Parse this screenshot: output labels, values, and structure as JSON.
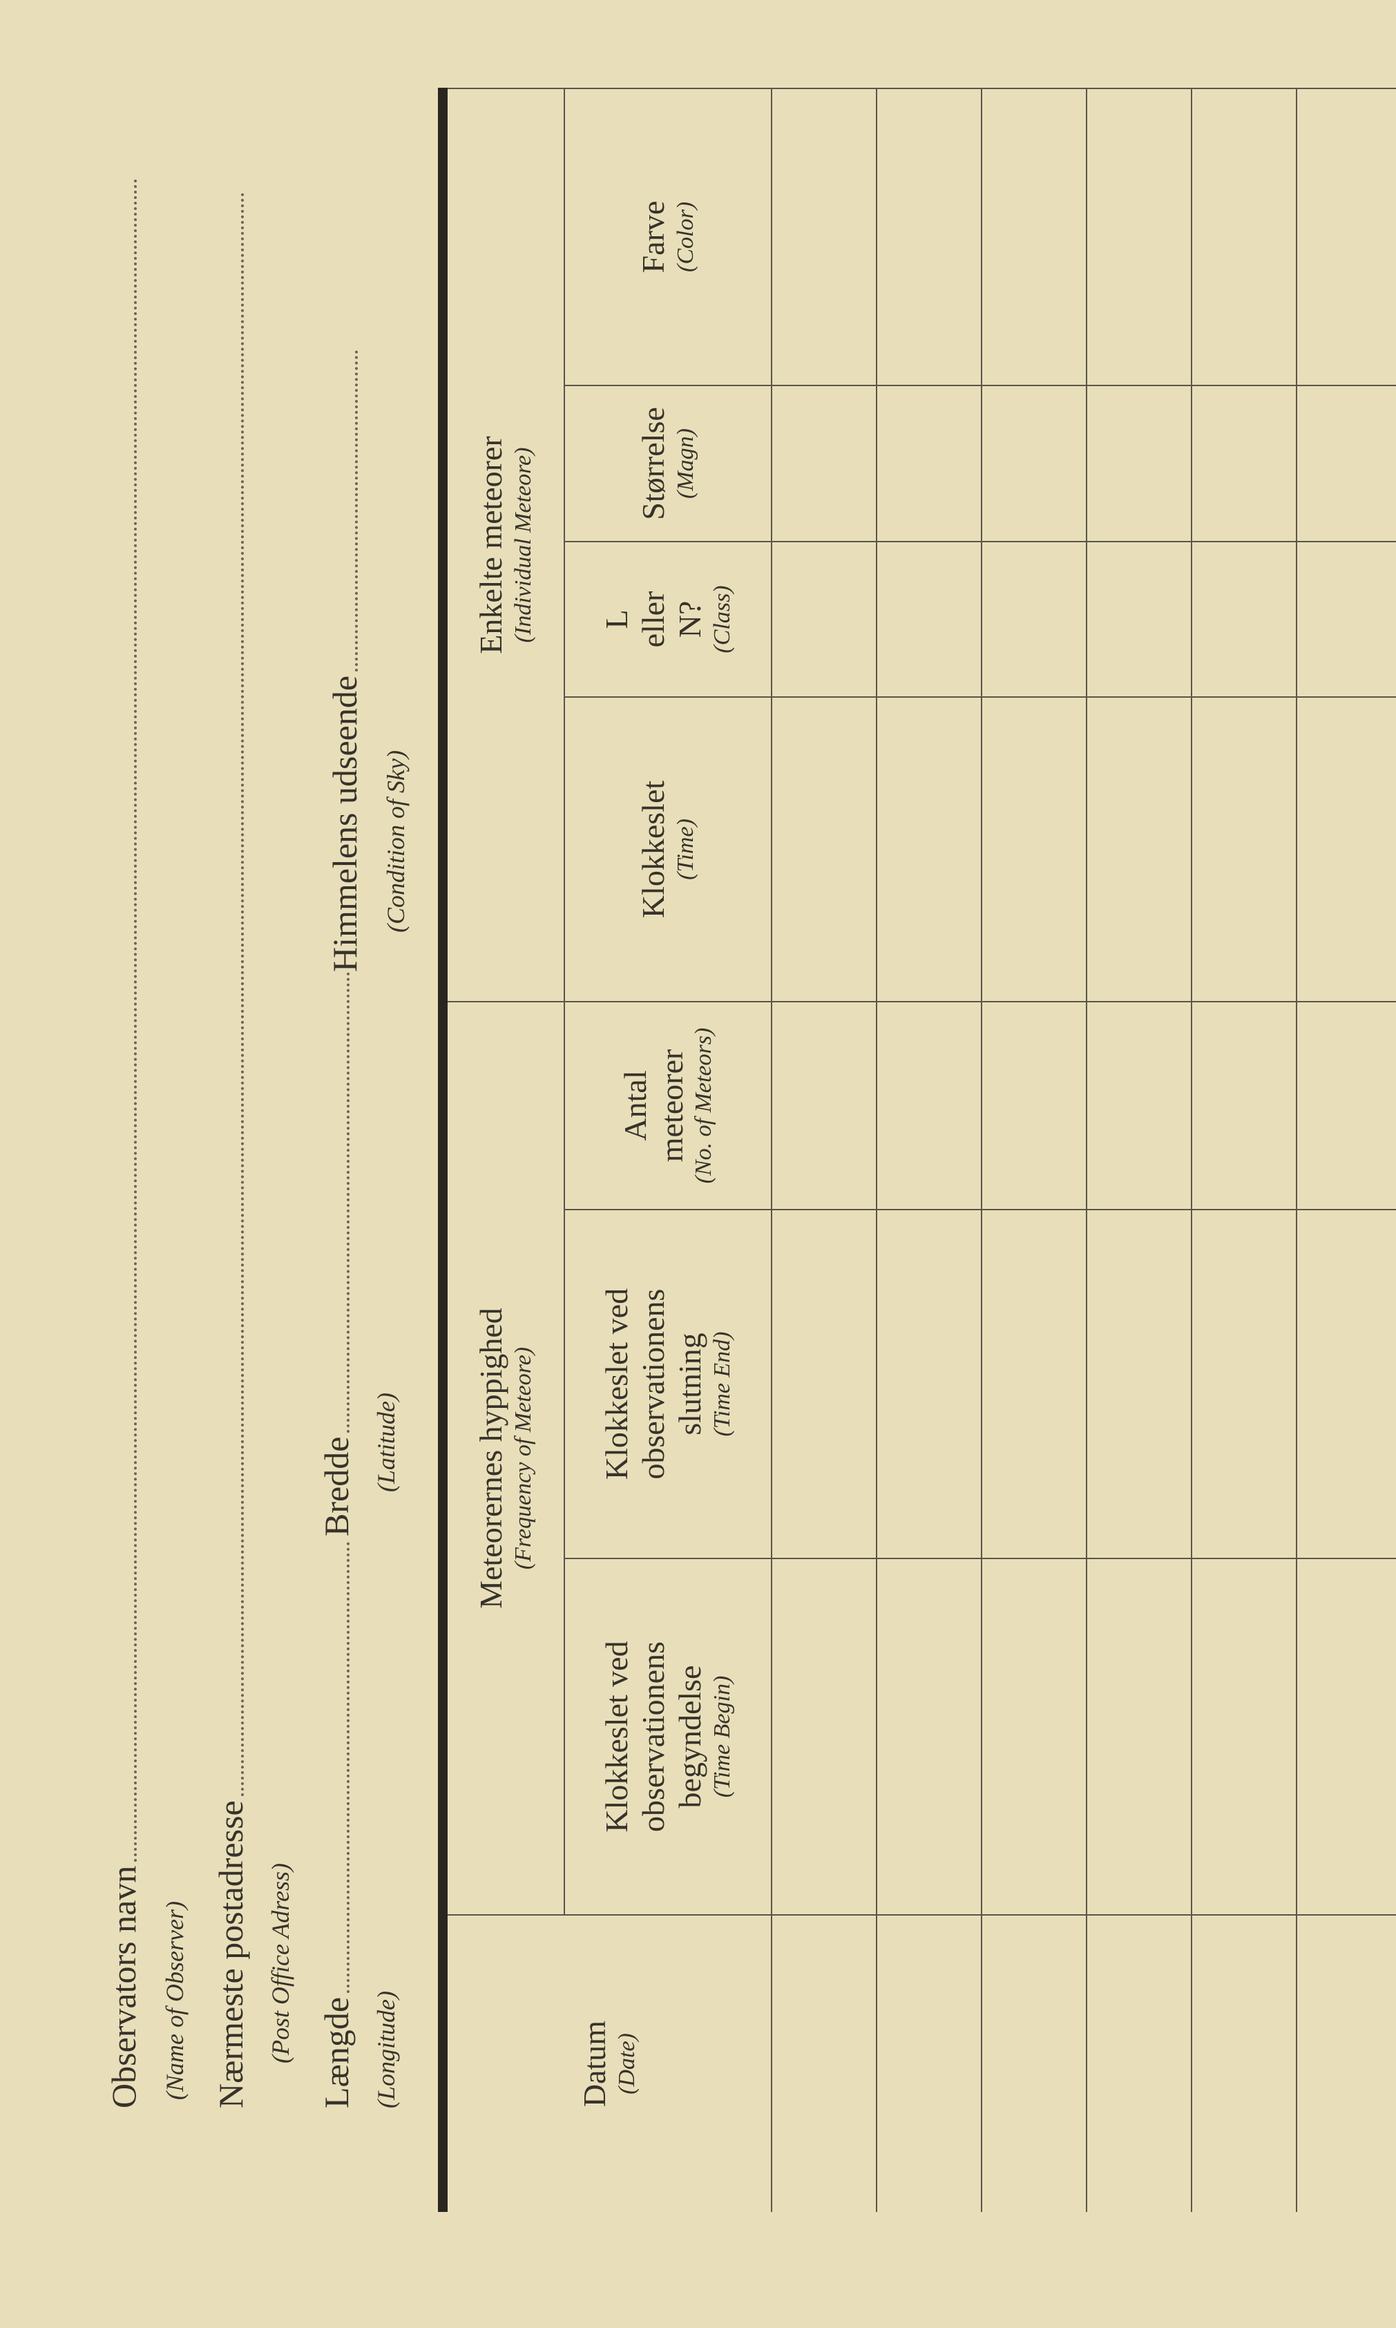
{
  "header": {
    "observer_name_label": "Observators navn",
    "observer_name_en": "(Name of Observer)",
    "post_address_label": "Nærmeste postadresse",
    "post_address_en": "(Post Office Adress)",
    "longitude_label": "Længde",
    "longitude_en": "(Longitude)",
    "latitude_label": "Bredde",
    "latitude_en": "(Latitude)",
    "sky_label": "Himmelens udseende",
    "sky_en": "(Condition of Sky)"
  },
  "table": {
    "date": {
      "label": "Datum",
      "en": "(Date)"
    },
    "frequency_group": {
      "label": "Meteorernes hyppighed",
      "en": "(Frequency of Meteore)"
    },
    "individual_group": {
      "label": "Enkelte meteorer",
      "en": "(Individual Meteore)"
    },
    "columns": [
      {
        "lines": [
          "Klokkeslet ved",
          "observationens",
          "begyndelse"
        ],
        "en": "(Time Begin)"
      },
      {
        "lines": [
          "Klokkeslet ved",
          "observationens",
          "slutning"
        ],
        "en": "(Time End)"
      },
      {
        "lines": [
          "Antal",
          "meteorer"
        ],
        "en": "(No. of Meteors)"
      },
      {
        "lines": [
          "Klokkeslet"
        ],
        "en": "(Time)"
      },
      {
        "lines": [
          "L",
          "eller",
          "N?"
        ],
        "en": "(Class)"
      },
      {
        "lines": [
          "Størrelse"
        ],
        "en": "(Magn)"
      },
      {
        "lines": [
          "Farve"
        ],
        "en": "(Color)"
      }
    ]
  }
}
